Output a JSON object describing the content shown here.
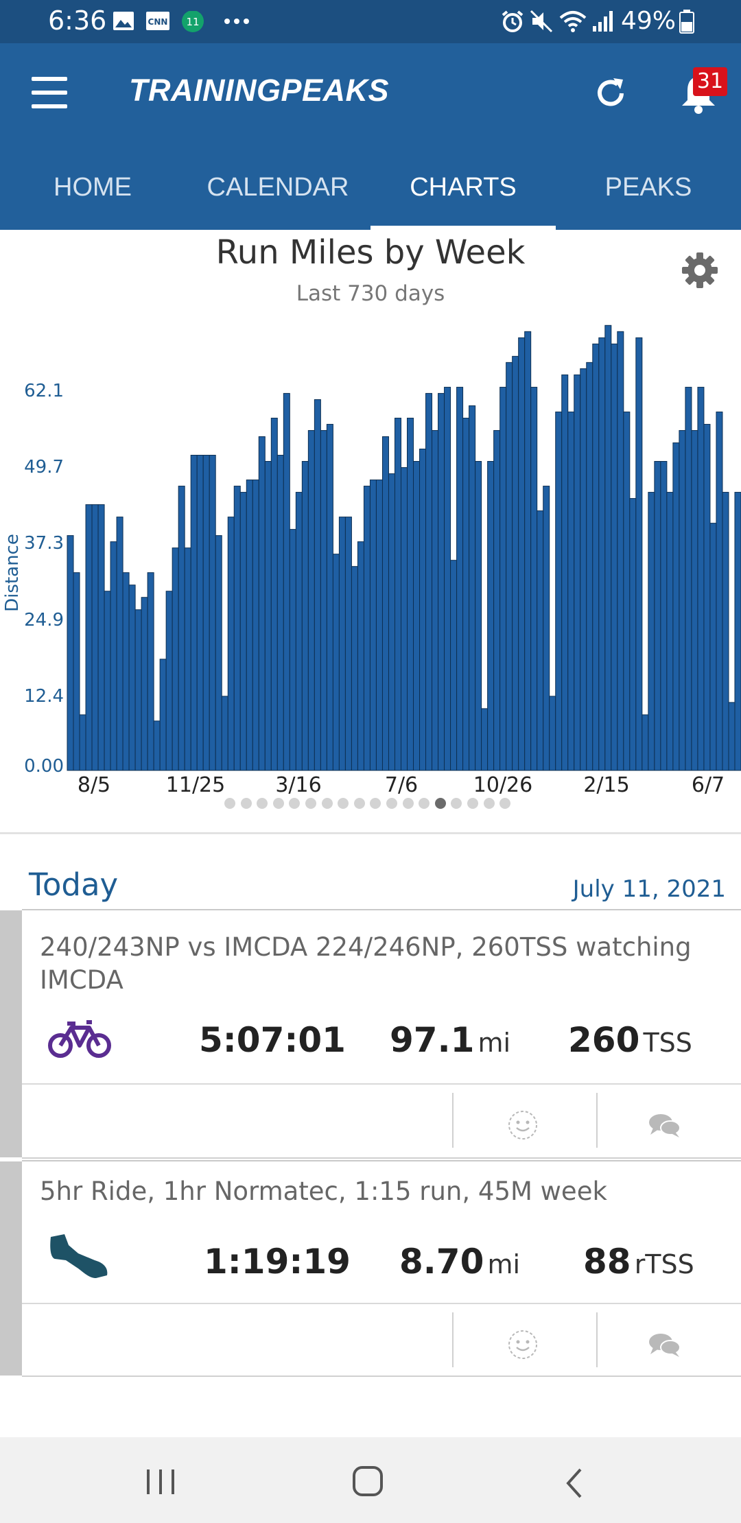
{
  "status_bar": {
    "time": "6:36",
    "battery": "49%",
    "left_icons": [
      "image-icon",
      "cnn-icon",
      "calendar-11-icon",
      "more-dots-icon"
    ],
    "right_icons": [
      "alarm-icon",
      "mute-icon",
      "wifi-icon",
      "signal-icon",
      "battery-icon"
    ]
  },
  "app": {
    "logo": "TRAININGPEAKS",
    "notification_count": "31",
    "brand_color": "#22609b"
  },
  "tabs": [
    {
      "label": "HOME"
    },
    {
      "label": "CALENDAR"
    },
    {
      "label": "CHARTS",
      "active": true
    },
    {
      "label": "PEAKS"
    }
  ],
  "chart_data": {
    "type": "bar",
    "title": "Run Miles by Week",
    "subtitle": "Last 730 days",
    "ylabel": "Distance",
    "yticks": [
      "62.1",
      "49.7",
      "37.3",
      "24.9",
      "12.4",
      "0.00"
    ],
    "ylim": [
      0,
      72
    ],
    "xticks": [
      "8/5",
      "11/25",
      "3/16",
      "7/6",
      "10/26",
      "2/15",
      "6/7"
    ],
    "bar_color": "#1f5fa3",
    "values": [
      38,
      32,
      9,
      43,
      43,
      43,
      29,
      37,
      41,
      32,
      30,
      26,
      28,
      32,
      8,
      18,
      29,
      36,
      46,
      36,
      51,
      51,
      51,
      51,
      38,
      12,
      41,
      46,
      45,
      47,
      47,
      54,
      50,
      57,
      51,
      61,
      39,
      45,
      50,
      55,
      60,
      55,
      56,
      35,
      41,
      41,
      33,
      37,
      46,
      47,
      47,
      54,
      48,
      57,
      49,
      57,
      50,
      52,
      61,
      55,
      61,
      62,
      34,
      62,
      57,
      59,
      50,
      10,
      50,
      55,
      62,
      66,
      67,
      70,
      71,
      62,
      42,
      46,
      12,
      58,
      64,
      58,
      64,
      65,
      66,
      69,
      70,
      72,
      69,
      71,
      58,
      44,
      70,
      9,
      45,
      50,
      50,
      45,
      53,
      55,
      62,
      55,
      62,
      56,
      40,
      58,
      45,
      11,
      45
    ]
  },
  "pager": {
    "count": 18,
    "active": 13
  },
  "today": {
    "label": "Today",
    "date": "July 11, 2021"
  },
  "workouts": [
    {
      "title": "240/243NP vs IMCDA 224/246NP, 260TSS watching IMCDA",
      "icon": "bike-icon",
      "icon_color": "#5a2d91",
      "duration": "5:07:01",
      "distance": "97.1",
      "distance_unit": "mi",
      "load": "260",
      "load_unit": "TSS"
    },
    {
      "title": "5hr Ride, 1hr Normatec, 1:15 run, 45M week",
      "icon": "running-shoe-icon",
      "icon_color": "#1e5266",
      "duration": "1:19:19",
      "distance": "8.70",
      "distance_unit": "mi",
      "load": "88",
      "load_unit": "rTSS"
    }
  ]
}
